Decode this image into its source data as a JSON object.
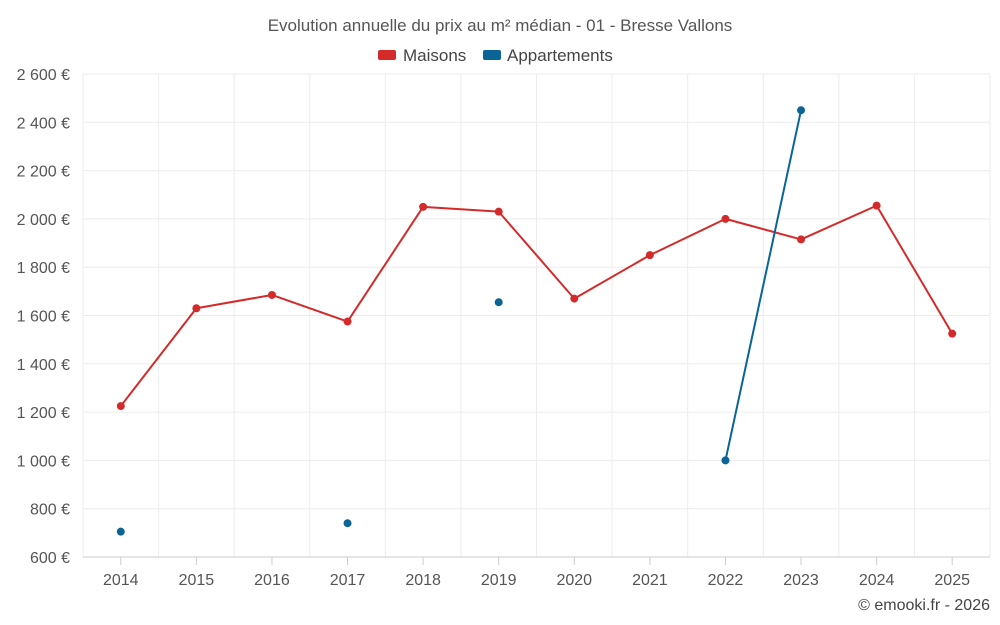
{
  "chart_data": {
    "type": "line",
    "title": "Evolution annuelle du prix au m² médian - 01 - Bresse Vallons",
    "categories": [
      "2014",
      "2015",
      "2016",
      "2017",
      "2018",
      "2019",
      "2020",
      "2021",
      "2022",
      "2023",
      "2024",
      "2025"
    ],
    "series": [
      {
        "name": "Maisons",
        "color": "#d42a2a",
        "values": [
          1225,
          1630,
          1685,
          1575,
          2050,
          2030,
          1670,
          1850,
          2000,
          1915,
          2055,
          1525
        ]
      },
      {
        "name": "Appartements",
        "color": "#0a6496",
        "values": [
          705,
          null,
          null,
          740,
          null,
          1655,
          null,
          null,
          1000,
          2450,
          null,
          null
        ]
      }
    ],
    "y_ticks": [
      600,
      800,
      1000,
      1200,
      1400,
      1600,
      1800,
      2000,
      2200,
      2400,
      2600
    ],
    "y_tick_labels": [
      "600 €",
      "800 €",
      "1 000 €",
      "1 200 €",
      "1 400 €",
      "1 600 €",
      "1 800 €",
      "2 000 €",
      "2 200 €",
      "2 400 €",
      "2 600 €"
    ],
    "ylim": [
      600,
      2600
    ],
    "xlabel": "",
    "ylabel": "",
    "grid": true,
    "legend_position": "top-center"
  },
  "credit": "© emooki.fr - 2026"
}
